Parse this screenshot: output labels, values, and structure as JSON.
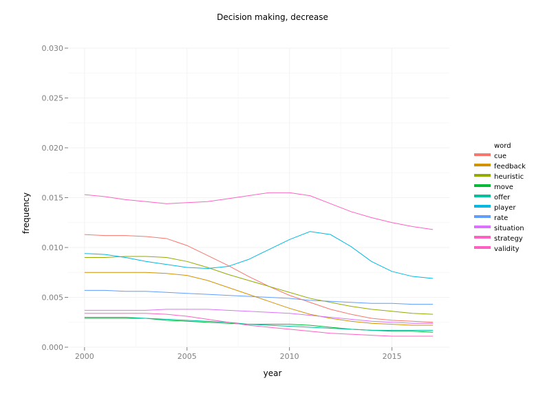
{
  "chart_data": {
    "type": "line",
    "title": "Decision making, decrease",
    "xlabel": "year",
    "ylabel": "frequency",
    "xlim": [
      1999.2,
      2017.8
    ],
    "ylim": [
      0.0,
      0.03
    ],
    "x_ticks": [
      2000,
      2005,
      2010,
      2015
    ],
    "x_tick_labels": [
      "2000",
      "2005",
      "2010",
      "2015"
    ],
    "y_ticks": [
      0.0,
      0.005,
      0.01,
      0.015,
      0.02,
      0.025,
      0.03
    ],
    "y_tick_labels": [
      "0.000",
      "0.005",
      "0.010",
      "0.015",
      "0.020",
      "0.025",
      "0.030"
    ],
    "grid": true,
    "legend_title": "word",
    "legend_position": "right",
    "x": [
      2000,
      2001,
      2002,
      2003,
      2004,
      2005,
      2006,
      2007,
      2008,
      2009,
      2010,
      2011,
      2012,
      2013,
      2014,
      2015,
      2016,
      2017
    ],
    "series": [
      {
        "name": "cue",
        "color": "#F8766D",
        "values": [
          0.0113,
          0.0112,
          0.0112,
          0.0111,
          0.0109,
          0.0102,
          0.0092,
          0.0082,
          0.0071,
          0.0061,
          0.0052,
          0.0045,
          0.0038,
          0.0033,
          0.0029,
          0.0027,
          0.0026,
          0.0025
        ]
      },
      {
        "name": "feedback",
        "color": "#D39200",
        "values": [
          0.0075,
          0.0075,
          0.0075,
          0.0075,
          0.0074,
          0.0072,
          0.0067,
          0.006,
          0.0053,
          0.0046,
          0.0039,
          0.0033,
          0.0029,
          0.0026,
          0.0024,
          0.0023,
          0.0022,
          0.0022
        ]
      },
      {
        "name": "heuristic",
        "color": "#93AA00",
        "values": [
          0.009,
          0.009,
          0.0091,
          0.0091,
          0.009,
          0.0086,
          0.008,
          0.0073,
          0.0067,
          0.0061,
          0.0055,
          0.0049,
          0.0045,
          0.0041,
          0.0038,
          0.0036,
          0.0034,
          0.0033
        ]
      },
      {
        "name": "move",
        "color": "#00BA38",
        "values": [
          0.0029,
          0.0029,
          0.0029,
          0.0029,
          0.0027,
          0.0026,
          0.0025,
          0.0024,
          0.0023,
          0.0023,
          0.0023,
          0.0022,
          0.002,
          0.0018,
          0.0017,
          0.0016,
          0.0016,
          0.0015
        ]
      },
      {
        "name": "offer",
        "color": "#00C19F",
        "values": [
          0.003,
          0.003,
          0.003,
          0.0029,
          0.0028,
          0.0027,
          0.0026,
          0.0025,
          0.0023,
          0.0022,
          0.0021,
          0.002,
          0.0019,
          0.0018,
          0.0017,
          0.0017,
          0.0017,
          0.0017
        ]
      },
      {
        "name": "player",
        "color": "#00B9E3",
        "values": [
          0.0094,
          0.0093,
          0.009,
          0.0086,
          0.0083,
          0.008,
          0.0079,
          0.0081,
          0.0088,
          0.0098,
          0.0108,
          0.0116,
          0.0113,
          0.0101,
          0.0086,
          0.0076,
          0.0071,
          0.0069
        ]
      },
      {
        "name": "rate",
        "color": "#619CFF",
        "values": [
          0.0057,
          0.0057,
          0.0056,
          0.0056,
          0.0055,
          0.0054,
          0.0053,
          0.0052,
          0.0051,
          0.005,
          0.0049,
          0.0047,
          0.0046,
          0.0045,
          0.0044,
          0.0044,
          0.0043,
          0.0043
        ]
      },
      {
        "name": "situation",
        "color": "#DB72FB",
        "values": [
          0.0037,
          0.0037,
          0.0037,
          0.0037,
          0.0038,
          0.0038,
          0.0038,
          0.0037,
          0.0036,
          0.0035,
          0.0034,
          0.0032,
          0.003,
          0.0028,
          0.0026,
          0.0025,
          0.0024,
          0.0024
        ]
      },
      {
        "name": "strategy",
        "color": "#FF61C3",
        "values": [
          0.0153,
          0.0151,
          0.0148,
          0.0146,
          0.0144,
          0.0145,
          0.0146,
          0.0149,
          0.0152,
          0.0155,
          0.0155,
          0.0152,
          0.0144,
          0.0136,
          0.013,
          0.0125,
          0.0121,
          0.0118
        ]
      },
      {
        "name": "validity",
        "color": "#FF61C3",
        "values": [
          0.0034,
          0.0034,
          0.0034,
          0.0034,
          0.0033,
          0.0031,
          0.0028,
          0.0025,
          0.0022,
          0.002,
          0.0018,
          0.0016,
          0.0014,
          0.0013,
          0.0012,
          0.0011,
          0.0011,
          0.0011
        ]
      }
    ]
  }
}
